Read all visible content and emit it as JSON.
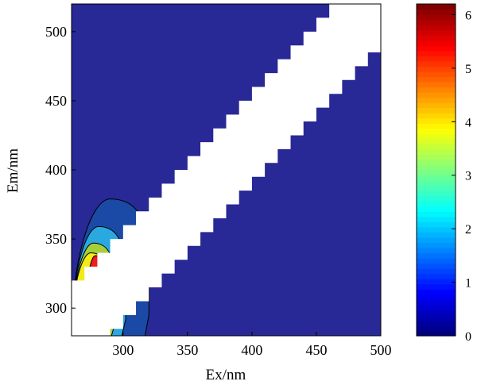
{
  "chart_data": {
    "type": "heatmap",
    "title": "",
    "xlabel": "Ex/nm",
    "ylabel": "Em/nm",
    "xlim": [
      260,
      500
    ],
    "ylim": [
      280,
      520
    ],
    "x_ticks": [
      "300",
      "350",
      "400",
      "450",
      "500"
    ],
    "y_ticks": [
      "300",
      "350",
      "400",
      "450",
      "500"
    ],
    "x_tick_values": [
      300,
      350,
      400,
      450,
      500
    ],
    "y_tick_values": [
      300,
      350,
      400,
      450,
      500
    ],
    "background_value": 0,
    "blank_region": "Rayleigh scatter band (Em ≈ Ex to Ex + 60 nm), masked in white",
    "peak": {
      "ex": 282,
      "em": 315,
      "value": 6.0
    },
    "contour_levels": [
      0.8,
      1.7,
      2.6,
      3.5,
      4.3,
      5.2
    ],
    "contours": [
      {
        "level": 0.8,
        "ex_range": [
          260,
          320
        ],
        "em_range": [
          280,
          379
        ]
      },
      {
        "level": 1.7,
        "ex_range": [
          260,
          302
        ],
        "em_range": [
          280,
          359
        ]
      },
      {
        "level": 2.6,
        "ex_range": [
          260,
          294
        ],
        "em_range": [
          280,
          347
        ]
      },
      {
        "level": 3.5,
        "ex_range": [
          260,
          290
        ],
        "em_range": [
          280,
          340
        ]
      },
      {
        "level": 4.3,
        "ex_range": [
          270,
          287
        ],
        "em_range": [
          283,
          338
        ]
      },
      {
        "level": 5.2,
        "ex_range": [
          279,
          285
        ],
        "em_range": [
          297,
          331
        ]
      }
    ],
    "colorbar": {
      "min": 0,
      "max": 6.2,
      "ticks": [
        "0",
        "1",
        "2",
        "3",
        "4",
        "5",
        "6"
      ],
      "tick_values": [
        0,
        1,
        2,
        3,
        4,
        5,
        6
      ],
      "colormap": "jet"
    },
    "colors": {
      "background": "#282896",
      "mask": "#ffffff",
      "c1": "#1a4aa6",
      "c2": "#2aa8e0",
      "c3": "#a7cf3a",
      "c4": "#f3ea18",
      "c5": "#ee1c1c",
      "c6": "#a80c0c"
    }
  }
}
